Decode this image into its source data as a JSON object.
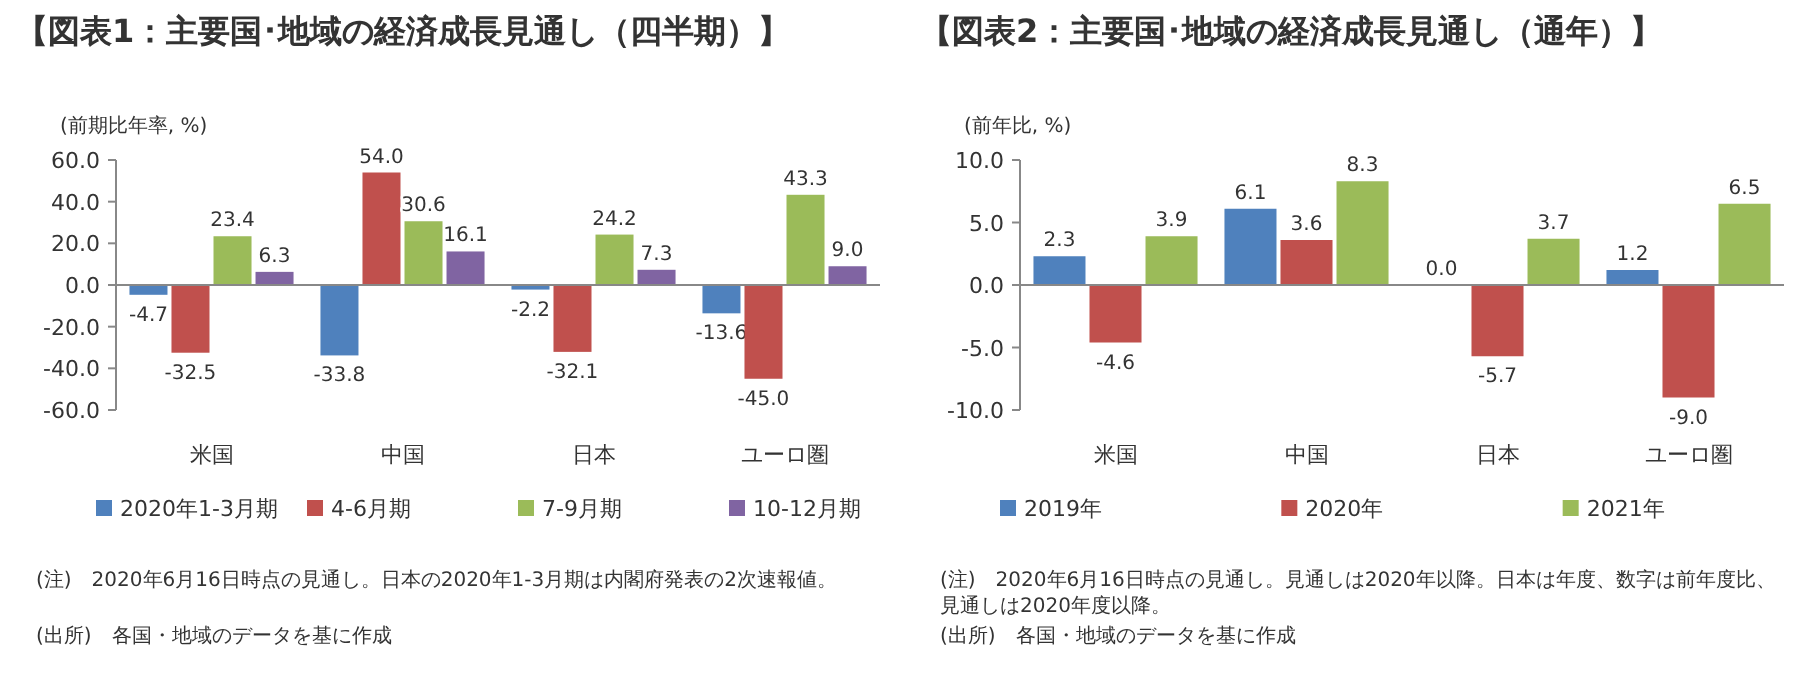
{
  "chart_data": [
    {
      "type": "bar",
      "title": "【図表1：主要国･地域の経済成長見通し（四半期）】",
      "ylabel": "(前期比年率, %)",
      "categories": [
        "米国",
        "中国",
        "日本",
        "ユーロ圏"
      ],
      "series": [
        {
          "name": "2020年1-3月期",
          "color": "#4f81bd",
          "values": [
            -4.7,
            -33.8,
            -2.2,
            -13.6
          ],
          "value_labels": [
            "-4.7",
            "-33.8",
            "-2.2",
            "-13.6"
          ]
        },
        {
          "name": "4-6月期",
          "color": "#c0504d",
          "values": [
            -32.5,
            54.0,
            -32.1,
            -45.0
          ],
          "value_labels": [
            "-32.5",
            "54.0",
            "-32.1",
            "-45.0"
          ]
        },
        {
          "name": "7-9月期",
          "color": "#9bbb59",
          "values": [
            23.4,
            30.6,
            24.2,
            43.3
          ],
          "value_labels": [
            "23.4",
            "30.6",
            "24.2",
            "43.3"
          ]
        },
        {
          "name": "10-12月期",
          "color": "#8064a2",
          "values": [
            6.3,
            16.1,
            7.3,
            9.0
          ],
          "value_labels": [
            "6.3",
            "16.1",
            "7.3",
            "9.0"
          ]
        }
      ],
      "ylim": [
        -60,
        60
      ],
      "yticks": [
        {
          "value": -60,
          "label": "-60.0"
        },
        {
          "value": -40,
          "label": "-40.0"
        },
        {
          "value": -20,
          "label": "-20.0"
        },
        {
          "value": 0,
          "label": "0.0"
        },
        {
          "value": 20,
          "label": "20.0"
        },
        {
          "value": 40,
          "label": "40.0"
        },
        {
          "value": 60,
          "label": "60.0"
        }
      ],
      "legend": "bottom",
      "annotations": [
        "(注)　2020年6月16日時点の見通し。日本の2020年1-3月期は内閣府発表の2次速報値。",
        "(出所)　各国・地域のデータを基に作成"
      ]
    },
    {
      "type": "bar",
      "title": "【図表2：主要国･地域の経済成長見通し（通年）】",
      "ylabel": "(前年比, %)",
      "categories": [
        "米国",
        "中国",
        "日本",
        "ユーロ圏"
      ],
      "series": [
        {
          "name": "2019年",
          "color": "#4f81bd",
          "values": [
            2.3,
            6.1,
            0.0,
            1.2
          ],
          "value_labels": [
            "2.3",
            "6.1",
            "0.0",
            "1.2"
          ]
        },
        {
          "name": "2020年",
          "color": "#c0504d",
          "values": [
            -4.6,
            3.6,
            -5.7,
            -9.0
          ],
          "value_labels": [
            "-4.6",
            "3.6",
            "-5.7",
            "-9.0"
          ]
        },
        {
          "name": "2021年",
          "color": "#9bbb59",
          "values": [
            3.9,
            8.3,
            3.7,
            6.5
          ],
          "value_labels": [
            "3.9",
            "8.3",
            "3.7",
            "6.5"
          ]
        }
      ],
      "ylim": [
        -10,
        10
      ],
      "yticks": [
        {
          "value": -10,
          "label": "-10.0"
        },
        {
          "value": -5,
          "label": "-5.0"
        },
        {
          "value": 0,
          "label": "0.0"
        },
        {
          "value": 5,
          "label": "5.0"
        },
        {
          "value": 10,
          "label": "10.0"
        }
      ],
      "legend": "bottom",
      "annotations": [
        "(注)　2020年6月16日時点の見通し。見通しは2020年以降。日本は年度、数字は前年度比、見通しは2020年度以降。",
        "(出所)　各国・地域のデータを基に作成"
      ]
    }
  ]
}
